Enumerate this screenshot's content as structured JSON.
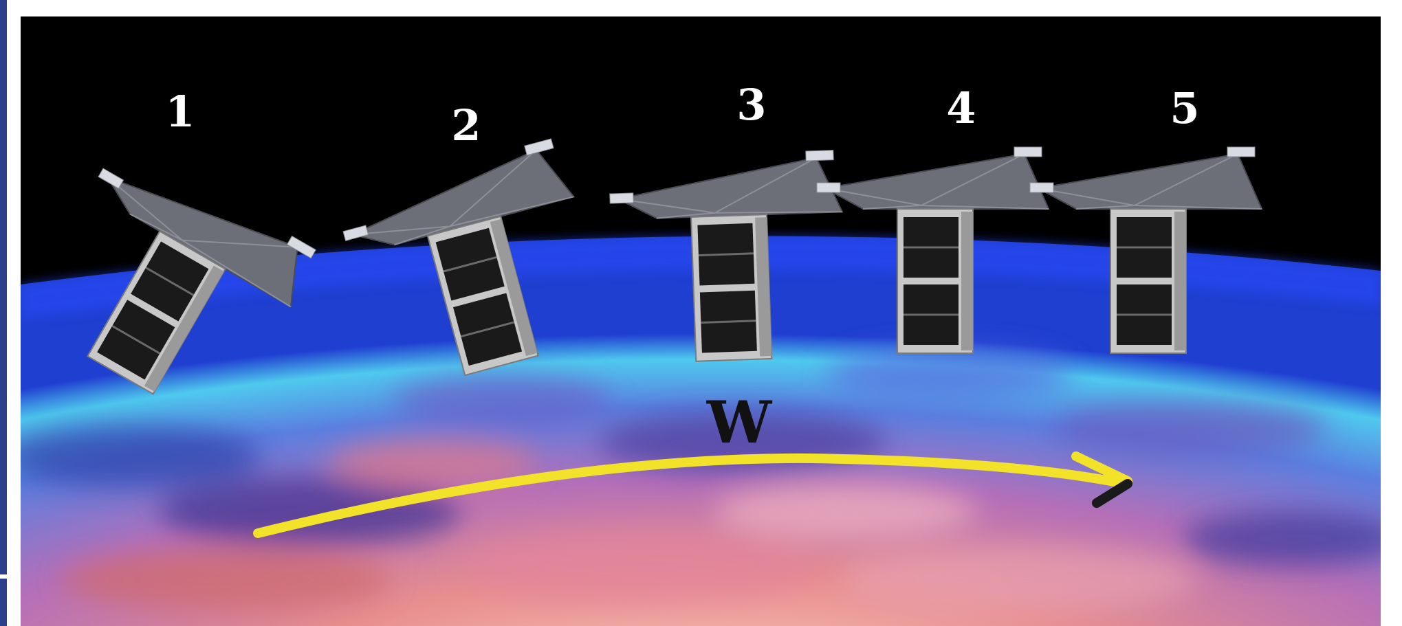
{
  "scene": {
    "satellites": [
      {
        "number": "1",
        "tilt_deg": 30
      },
      {
        "number": "2",
        "tilt_deg": -15
      },
      {
        "number": "3",
        "tilt_deg": -2
      },
      {
        "number": "4",
        "tilt_deg": 0
      },
      {
        "number": "5",
        "tilt_deg": 0
      }
    ],
    "velocity_label": "W",
    "colors": {
      "space": "#000000",
      "earth_blue": "#3a6fd8",
      "earth_cyan": "#4fd1f0",
      "cloud_pink": "#e08aa8",
      "cloud_orange": "#e07a5a",
      "arrow": "#f2e22a",
      "panel": "#6c6f78",
      "body": "#1a1a1a",
      "frame": "#c8c8c8"
    }
  }
}
